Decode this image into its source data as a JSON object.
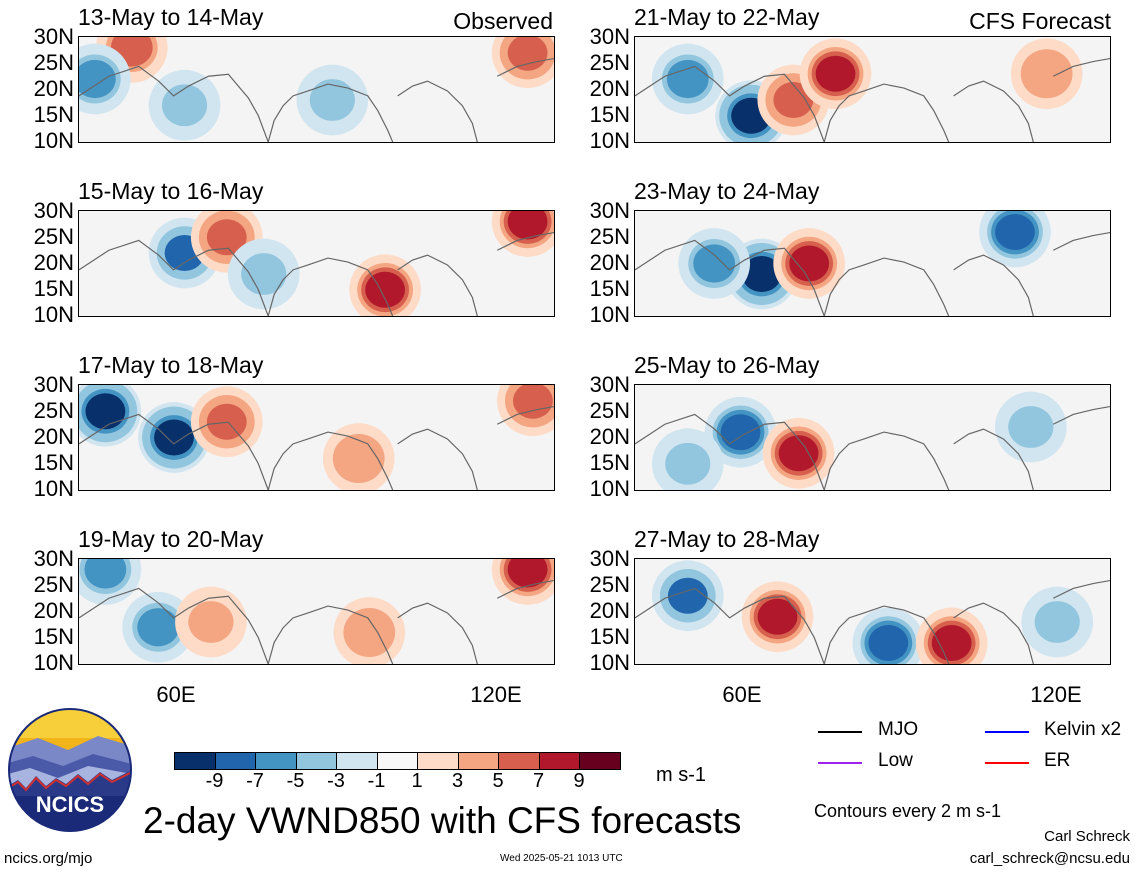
{
  "panels": [
    {
      "title": "13-May to 14-May",
      "tag": "Observed"
    },
    {
      "title": "15-May to 16-May",
      "tag": ""
    },
    {
      "title": "17-May to 18-May",
      "tag": ""
    },
    {
      "title": "19-May to 20-May",
      "tag": ""
    },
    {
      "title": "21-May to 22-May",
      "tag": "CFS Forecast"
    },
    {
      "title": "23-May to 24-May",
      "tag": ""
    },
    {
      "title": "25-May to 26-May",
      "tag": ""
    },
    {
      "title": "27-May to 28-May",
      "tag": ""
    }
  ],
  "axes": {
    "lat_ticks": [
      "30N",
      "25N",
      "20N",
      "15N",
      "10N"
    ],
    "lon_ticks": [
      "60E",
      "120E"
    ]
  },
  "colorbar": {
    "labels": [
      "-9",
      "-7",
      "-5",
      "-3",
      "-1",
      "1",
      "3",
      "5",
      "7",
      "9"
    ],
    "colors": [
      "#08306b",
      "#2166ac",
      "#4393c3",
      "#92c5de",
      "#d1e5f0",
      "#f7f7f7",
      "#fddbc7",
      "#f4a582",
      "#d6604d",
      "#b2182b",
      "#67001f"
    ],
    "units": "m s-1"
  },
  "legend": {
    "mjo": "MJO",
    "kelvin": "Kelvin x2",
    "low": "Low",
    "er": "ER",
    "colors": {
      "mjo": "#000000",
      "kelvin": "#0000ff",
      "low": "#a020f0",
      "er": "#ff0000"
    },
    "contours_note": "Contours every 2 m s-1"
  },
  "title": "2-day VWND850 with CFS forecasts",
  "logo": {
    "text": "NCICS"
  },
  "footer": {
    "url": "ncics.org/mjo",
    "timestamp": "Wed 2025-05-21 1013 UTC",
    "author": "Carl Schreck",
    "email": "carl_schreck@ncsu.edu"
  },
  "chart_data": {
    "type": "heatmap",
    "variable": "VWND850",
    "lat_range": [
      10,
      30
    ],
    "lon_range": [
      40,
      130
    ],
    "color_levels": [
      -9,
      -7,
      -5,
      -3,
      -1,
      1,
      3,
      5,
      7,
      9
    ],
    "panels": [
      {
        "period": "13-May to 14-May",
        "source": "Observed",
        "features": [
          {
            "lon": 50,
            "lat": 28,
            "v": 6
          },
          {
            "lon": 43,
            "lat": 22,
            "v": -6
          },
          {
            "lon": 60,
            "lat": 17,
            "v": -3
          },
          {
            "lon": 88,
            "lat": 18,
            "v": -3
          },
          {
            "lon": 125,
            "lat": 27,
            "v": 7
          }
        ]
      },
      {
        "period": "15-May to 16-May",
        "source": "Observed",
        "features": [
          {
            "lon": 60,
            "lat": 22,
            "v": -7
          },
          {
            "lon": 68,
            "lat": 25,
            "v": 7
          },
          {
            "lon": 75,
            "lat": 18,
            "v": -4
          },
          {
            "lon": 98,
            "lat": 15,
            "v": 9
          },
          {
            "lon": 125,
            "lat": 28,
            "v": 8
          }
        ]
      },
      {
        "period": "17-May to 18-May",
        "source": "Observed",
        "features": [
          {
            "lon": 45,
            "lat": 25,
            "v": -9
          },
          {
            "lon": 58,
            "lat": 20,
            "v": -9
          },
          {
            "lon": 68,
            "lat": 23,
            "v": 7
          },
          {
            "lon": 93,
            "lat": 16,
            "v": 5
          },
          {
            "lon": 126,
            "lat": 27,
            "v": 7
          }
        ]
      },
      {
        "period": "19-May to 20-May",
        "source": "Observed",
        "features": [
          {
            "lon": 45,
            "lat": 28,
            "v": -5
          },
          {
            "lon": 55,
            "lat": 17,
            "v": -6
          },
          {
            "lon": 65,
            "lat": 18,
            "v": 4
          },
          {
            "lon": 95,
            "lat": 16,
            "v": 5
          },
          {
            "lon": 125,
            "lat": 28,
            "v": 8
          }
        ]
      },
      {
        "period": "21-May to 22-May",
        "source": "CFS Forecast",
        "features": [
          {
            "lon": 50,
            "lat": 22,
            "v": -5
          },
          {
            "lon": 62,
            "lat": 15,
            "v": -9
          },
          {
            "lon": 70,
            "lat": 18,
            "v": 7
          },
          {
            "lon": 78,
            "lat": 23,
            "v": 8
          },
          {
            "lon": 118,
            "lat": 23,
            "v": 5
          }
        ]
      },
      {
        "period": "23-May to 24-May",
        "source": "CFS Forecast",
        "features": [
          {
            "lon": 64,
            "lat": 18,
            "v": -9
          },
          {
            "lon": 73,
            "lat": 20,
            "v": 9
          },
          {
            "lon": 55,
            "lat": 20,
            "v": -5
          },
          {
            "lon": 112,
            "lat": 26,
            "v": -8
          }
        ]
      },
      {
        "period": "25-May to 26-May",
        "source": "CFS Forecast",
        "features": [
          {
            "lon": 60,
            "lat": 21,
            "v": -8
          },
          {
            "lon": 71,
            "lat": 17,
            "v": 9
          },
          {
            "lon": 50,
            "lat": 15,
            "v": -4
          },
          {
            "lon": 115,
            "lat": 22,
            "v": -4
          }
        ]
      },
      {
        "period": "27-May to 28-May",
        "source": "CFS Forecast",
        "features": [
          {
            "lon": 50,
            "lat": 23,
            "v": -7
          },
          {
            "lon": 67,
            "lat": 19,
            "v": 9
          },
          {
            "lon": 88,
            "lat": 14,
            "v": -8
          },
          {
            "lon": 100,
            "lat": 14,
            "v": 9
          },
          {
            "lon": 120,
            "lat": 18,
            "v": -3
          }
        ]
      }
    ]
  }
}
